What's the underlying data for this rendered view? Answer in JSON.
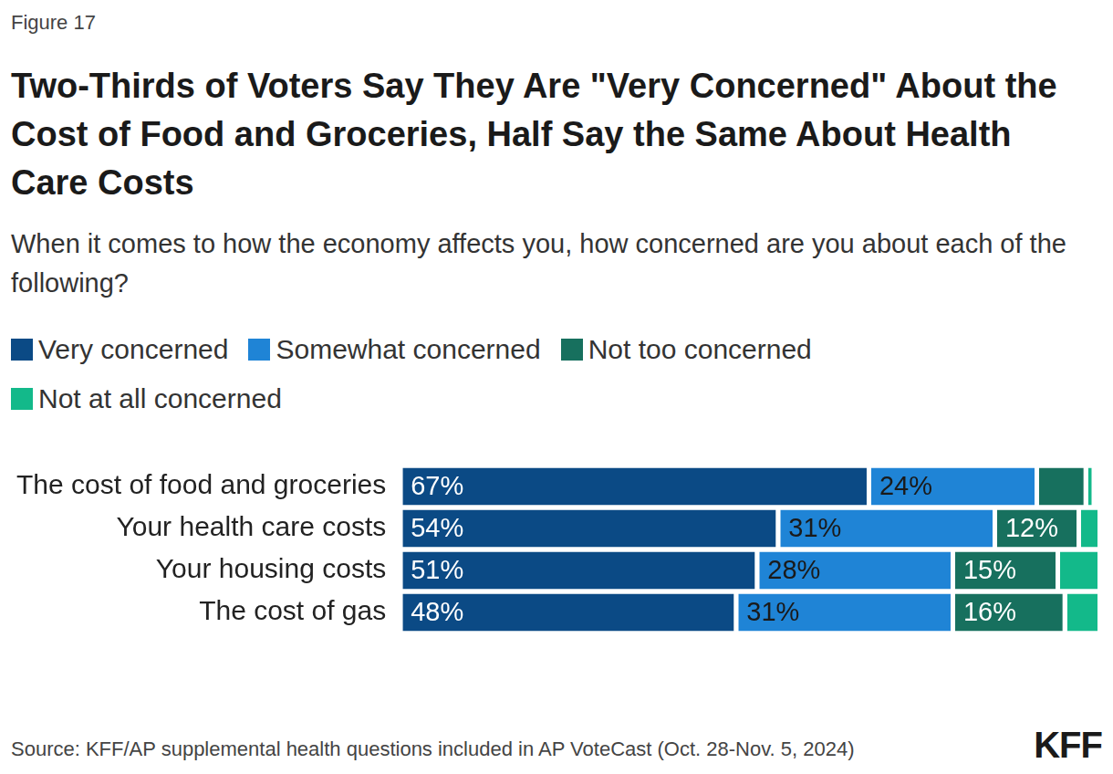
{
  "chart_data": {
    "type": "bar",
    "orientation": "horizontal",
    "stacked": true,
    "figure_label": "Figure 17",
    "title": "Two-Thirds of Voters Say They Are \"Very Concerned\" About the Cost of Food and Groceries, Half Say the Same About Health Care Costs",
    "subtitle": "When it comes to how the economy affects you, how concerned are you about each of the following?",
    "source": "Source: KFF/AP supplemental health questions included in AP VoteCast (Oct. 28-Nov. 5, 2024)",
    "logo": "KFF",
    "categories": [
      "The cost of food and groceries",
      "Your health care costs",
      "Your housing costs",
      "The cost of gas"
    ],
    "series": [
      {
        "name": "Very concerned",
        "color": "#0b4a85",
        "values": [
          67,
          54,
          51,
          48
        ],
        "value_labels": [
          "67%",
          "54%",
          "51%",
          "48%"
        ]
      },
      {
        "name": "Somewhat concerned",
        "color": "#1f84d6",
        "values": [
          24,
          31,
          28,
          31
        ],
        "value_labels": [
          "24%",
          "31%",
          "28%",
          "31%"
        ]
      },
      {
        "name": "Not too concerned",
        "color": "#17705e",
        "values": [
          7,
          12,
          15,
          16
        ],
        "value_labels": [
          null,
          "12%",
          "15%",
          "16%"
        ]
      },
      {
        "name": "Not at all concerned",
        "color": "#13b98a",
        "values": [
          1,
          3,
          6,
          5
        ],
        "value_labels": [
          null,
          null,
          null,
          null
        ]
      }
    ],
    "xlim": [
      0,
      100
    ],
    "grid": false,
    "legend": "top",
    "data_labels": true,
    "tick_labels": "y"
  }
}
